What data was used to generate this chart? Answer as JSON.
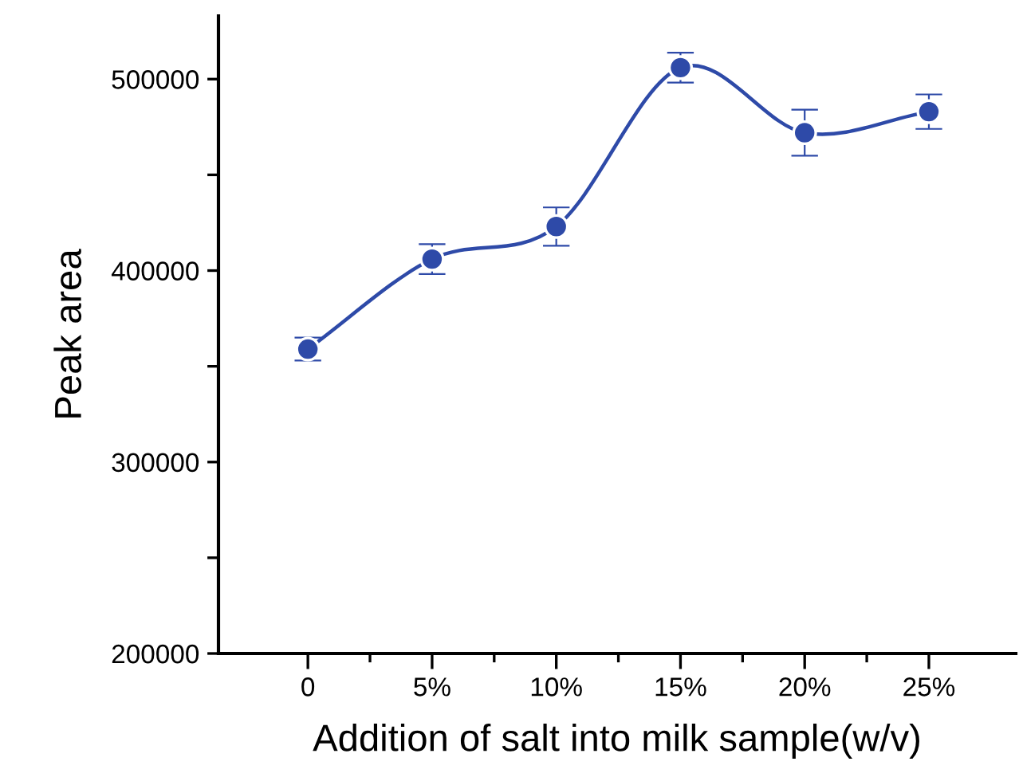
{
  "chart_data": {
    "type": "line",
    "xlabel": "Addition of salt into milk sample(w/v)",
    "ylabel": "Peak area",
    "categories": [
      "0",
      "5%",
      "10%",
      "15%",
      "20%",
      "25%"
    ],
    "series": [
      {
        "color": "#2e4aa8",
        "values": [
          359000,
          406000,
          423000,
          506000,
          472000,
          483000
        ],
        "errors": [
          6000,
          7800,
          10000,
          7800,
          12000,
          9000
        ]
      }
    ],
    "ylim": [
      200000,
      533000
    ],
    "yticks": [
      200000,
      {
        "value": 250000,
        "label": null
      },
      300000,
      {
        "value": 350000,
        "label": null
      },
      400000,
      {
        "value": 450000,
        "label": null
      },
      500000
    ],
    "marker": "circle",
    "line_style": "solid",
    "grid": false,
    "legend": false
  }
}
